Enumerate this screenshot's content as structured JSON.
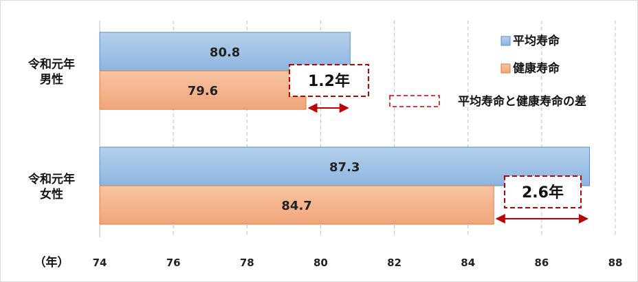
{
  "chart_data": {
    "type": "bar",
    "orientation": "horizontal",
    "categories": [
      {
        "lines": [
          "令和元年",
          "男性"
        ]
      },
      {
        "lines": [
          "令和元年",
          "女性"
        ]
      }
    ],
    "series": [
      {
        "name": "平均寿命",
        "values": [
          80.8,
          87.3
        ],
        "color": "#9dc3e6"
      },
      {
        "name": "健康寿命",
        "values": [
          79.6,
          84.7
        ],
        "color": "#f4b183"
      }
    ],
    "value_labels": [
      [
        "80.8",
        "87.3"
      ],
      [
        "79.6",
        "84.7"
      ]
    ],
    "differences": [
      {
        "category": 0,
        "label": "1.2年",
        "value": 1.2
      },
      {
        "category": 1,
        "label": "2.6年",
        "value": 2.6
      }
    ],
    "difference_legend": "平均寿命と健康寿命の差",
    "xlim": [
      74,
      88
    ],
    "xticks": [
      74,
      76,
      78,
      80,
      82,
      84,
      86,
      88
    ],
    "xunit": "（年）",
    "grid": "vertical-dashed",
    "legend": "top-right",
    "colors": {
      "blue_fill": "#9dc3e6",
      "blue_stroke": "#5b8ec6",
      "orange_fill": "#f4b183",
      "orange_stroke": "#e07b39",
      "dashed_box": "#c00000",
      "arrow": "#c00000"
    }
  }
}
